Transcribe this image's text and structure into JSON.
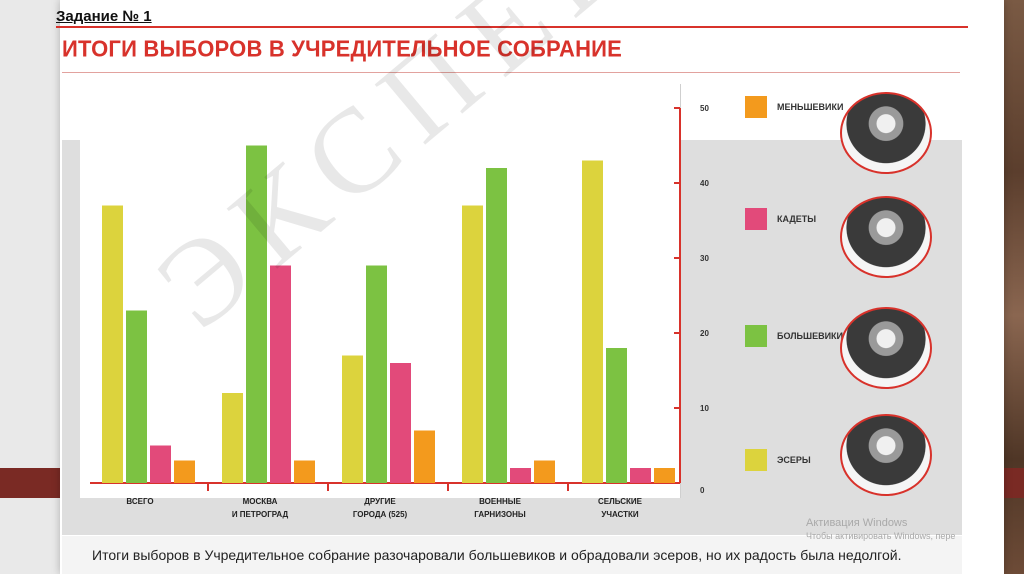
{
  "slide": {
    "task_label": "Задание № 1",
    "caption": "Итоги выборов в Учредительное собрание разочаровали большевиков и обрадовали эсеров, но их радость была недолгой.",
    "watermark": "ЭКСПЕРТИЗА",
    "activation_line1": "Активация Windows",
    "activation_line2": "Чтобы активировать Windows, пере"
  },
  "chart_data": {
    "type": "bar",
    "title": "ИТОГИ ВЫБОРОВ В УЧРЕДИТЕЛЬНОЕ СОБРАНИЕ",
    "categories": [
      [
        "ВСЕГО"
      ],
      [
        "МОСКВА",
        "И ПЕТРОГРАД"
      ],
      [
        "ДРУГИЕ",
        "ГОРОДА (525)"
      ],
      [
        "ВОЕННЫЕ",
        "ГАРНИЗОНЫ"
      ],
      [
        "СЕЛЬСКИЕ",
        "УЧАСТКИ"
      ]
    ],
    "series": [
      {
        "name": "ЭСЕРЫ",
        "color": "#dcd33d",
        "values": [
          37,
          12,
          17,
          37,
          43
        ]
      },
      {
        "name": "БОЛЬШЕВИКИ",
        "color": "#7cc242",
        "values": [
          23,
          45,
          29,
          42,
          18
        ]
      },
      {
        "name": "КАДЕТЫ",
        "color": "#e24a7a",
        "values": [
          5,
          29,
          16,
          2,
          2
        ]
      },
      {
        "name": "МЕНЬШЕВИКИ",
        "color": "#f39a1d",
        "values": [
          3,
          3,
          7,
          3,
          2
        ]
      }
    ],
    "legend_order": [
      "МЕНЬШЕВИКИ",
      "КАДЕТЫ",
      "БОЛЬШЕВИКИ",
      "ЭСЕРЫ"
    ],
    "ylim": [
      0,
      50
    ],
    "yticks": [
      0,
      10,
      20,
      30,
      40,
      50
    ],
    "axis_color": "#d8322b",
    "xlabel": "",
    "ylabel": ""
  }
}
